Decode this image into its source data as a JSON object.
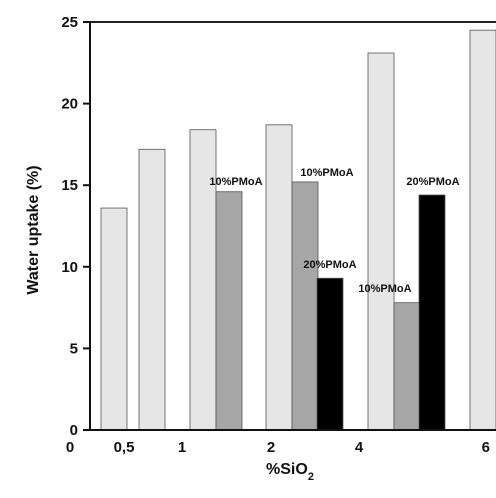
{
  "chart_data": {
    "type": "bar",
    "title": "",
    "ylabel": "Water uptake (%)",
    "xlabel": "%SiO",
    "xlabel_subscript": "2",
    "ylim": [
      0,
      25
    ],
    "yticks": [
      "0",
      "5",
      "10",
      "15",
      "20",
      "25"
    ],
    "xticks": [
      "0",
      "0,5",
      "1",
      "2",
      "4",
      "6"
    ],
    "grid": false,
    "legend": "none",
    "colors": {
      "light": "#e6e6e6",
      "gray": "#a6a6a6",
      "black": "#000000",
      "stroke": "#555555"
    },
    "bars": [
      {
        "category": "0",
        "shade": "light",
        "value": 13.6
      },
      {
        "category": "0,5",
        "shade": "light",
        "value": 17.2
      },
      {
        "category": "1",
        "shade": "light",
        "value": 18.4
      },
      {
        "category": "1",
        "shade": "gray",
        "value": 14.6,
        "label": "10%PMoA"
      },
      {
        "category": "2",
        "shade": "light",
        "value": 18.7
      },
      {
        "category": "2",
        "shade": "gray",
        "value": 15.2,
        "label": "10%PMoA"
      },
      {
        "category": "2",
        "shade": "black",
        "value": 9.3,
        "label": "20%PMoA"
      },
      {
        "category": "4",
        "shade": "light",
        "value": 23.1
      },
      {
        "category": "4",
        "shade": "gray",
        "value": 7.8,
        "label": "10%PMoA"
      },
      {
        "category": "4",
        "shade": "black",
        "value": 14.4,
        "label": "20%PMoA"
      },
      {
        "category": "6",
        "shade": "light",
        "value": 24.5
      }
    ]
  }
}
